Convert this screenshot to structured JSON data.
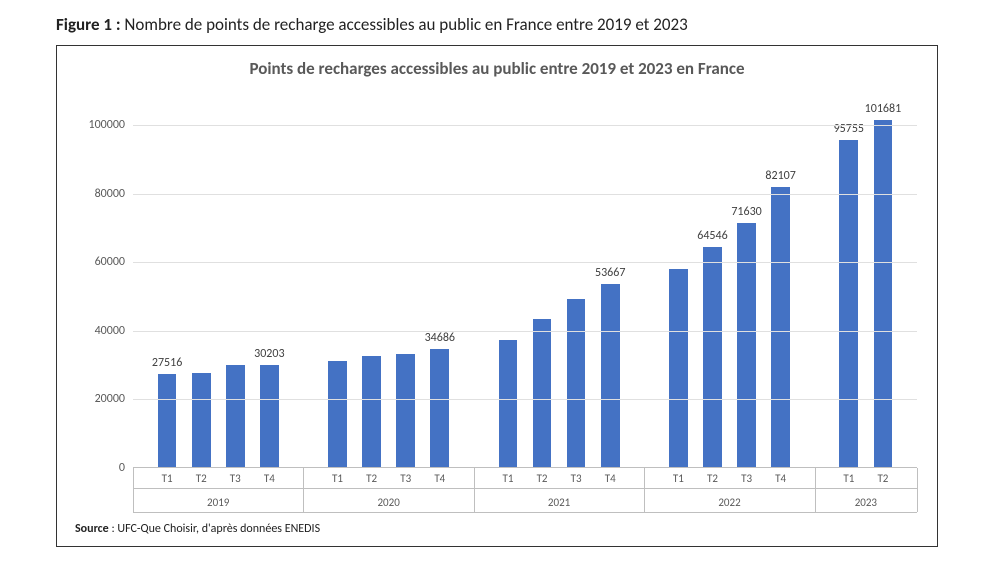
{
  "caption": {
    "label": "Figure 1 :",
    "text": " Nombre de points de recharge accessibles au public en France entre 2019 et 2023"
  },
  "chart": {
    "type": "bar",
    "title": "Points de recharges accessibles au public entre 2019 et 2023 en France",
    "title_fontsize": 17,
    "title_color": "#595959",
    "background_color": "#ffffff",
    "grid_color": "#e0e0e0",
    "axis_line_color": "#bfbfbf",
    "bar_color": "#4472c4",
    "bar_width": 0.55,
    "ylim": [
      0,
      108000
    ],
    "y_ticks": [
      0,
      20000,
      40000,
      60000,
      80000,
      100000
    ],
    "label_fontsize": 12,
    "label_color": "#595959",
    "data_label_color": "#404040",
    "years": [
      {
        "year": "2019",
        "quarters": [
          "T1",
          "T2",
          "T3",
          "T4"
        ],
        "values": [
          27516,
          27800,
          30000,
          30203
        ],
        "show_labels": [
          true,
          false,
          false,
          true
        ]
      },
      {
        "year": "2020",
        "quarters": [
          "T1",
          "T2",
          "T3",
          "T4"
        ],
        "values": [
          31200,
          32600,
          33400,
          34686
        ],
        "show_labels": [
          false,
          false,
          false,
          true
        ]
      },
      {
        "year": "2021",
        "quarters": [
          "T1",
          "T2",
          "T3",
          "T4"
        ],
        "values": [
          37500,
          43600,
          49200,
          53667
        ],
        "show_labels": [
          false,
          false,
          false,
          true
        ]
      },
      {
        "year": "2022",
        "quarters": [
          "T1",
          "T2",
          "T3",
          "T4"
        ],
        "values": [
          58000,
          64546,
          71630,
          82107
        ],
        "show_labels": [
          false,
          true,
          true,
          true
        ]
      },
      {
        "year": "2023",
        "quarters": [
          "T1",
          "T2"
        ],
        "values": [
          95755,
          101681
        ],
        "show_labels": [
          true,
          true
        ]
      }
    ]
  },
  "source": {
    "label": "Source",
    "text": " : UFC-Que Choisir, d'après données ENEDIS"
  }
}
